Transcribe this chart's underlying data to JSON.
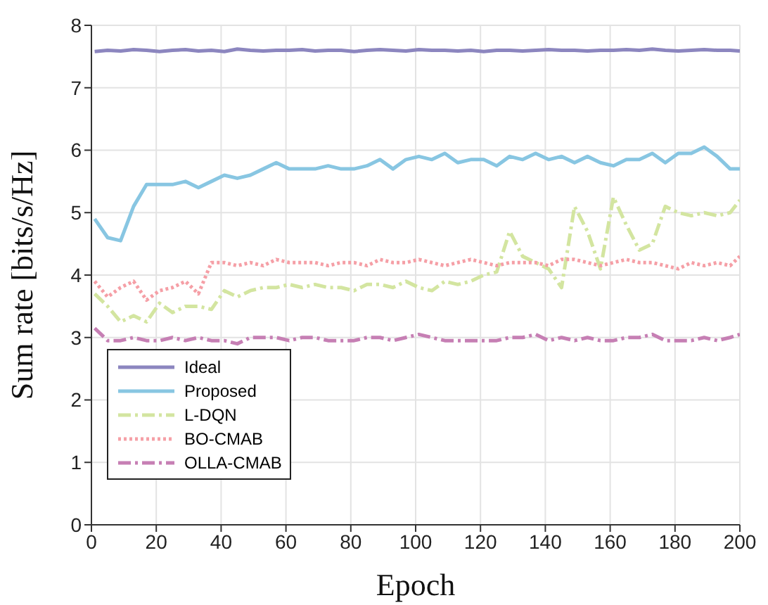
{
  "chart_data": {
    "type": "line",
    "xlabel": "Epoch",
    "ylabel": "Sum rate [bits/s/Hz]",
    "x": [
      1,
      5,
      9,
      13,
      17,
      21,
      25,
      29,
      33,
      37,
      41,
      45,
      49,
      53,
      57,
      61,
      65,
      69,
      73,
      77,
      81,
      85,
      89,
      93,
      97,
      101,
      105,
      109,
      113,
      117,
      121,
      125,
      129,
      133,
      137,
      141,
      145,
      149,
      153,
      157,
      161,
      165,
      169,
      173,
      177,
      181,
      185,
      189,
      193,
      197,
      200
    ],
    "series": [
      {
        "name": "Ideal",
        "color": "#8c86bf",
        "line_style": "solid",
        "values": [
          7.58,
          7.6,
          7.59,
          7.61,
          7.6,
          7.58,
          7.6,
          7.61,
          7.59,
          7.6,
          7.58,
          7.62,
          7.6,
          7.59,
          7.6,
          7.6,
          7.61,
          7.59,
          7.6,
          7.6,
          7.58,
          7.6,
          7.61,
          7.6,
          7.59,
          7.61,
          7.6,
          7.6,
          7.59,
          7.6,
          7.58,
          7.6,
          7.6,
          7.59,
          7.6,
          7.61,
          7.6,
          7.6,
          7.59,
          7.6,
          7.6,
          7.61,
          7.6,
          7.62,
          7.6,
          7.59,
          7.6,
          7.61,
          7.6,
          7.6,
          7.59
        ]
      },
      {
        "name": "Proposed",
        "color": "#88c6e2",
        "line_style": "solid",
        "values": [
          4.9,
          4.6,
          4.55,
          5.1,
          5.45,
          5.45,
          5.45,
          5.5,
          5.4,
          5.5,
          5.6,
          5.55,
          5.6,
          5.7,
          5.8,
          5.7,
          5.7,
          5.7,
          5.75,
          5.7,
          5.7,
          5.75,
          5.85,
          5.7,
          5.85,
          5.9,
          5.85,
          5.95,
          5.8,
          5.85,
          5.85,
          5.75,
          5.9,
          5.85,
          5.95,
          5.85,
          5.9,
          5.8,
          5.9,
          5.8,
          5.75,
          5.85,
          5.85,
          5.95,
          5.8,
          5.95,
          5.95,
          6.05,
          5.9,
          5.7,
          5.7
        ]
      },
      {
        "name": "L-DQN",
        "color": "#d3e5a0",
        "line_style": "dashed",
        "values": [
          3.7,
          3.5,
          3.25,
          3.35,
          3.25,
          3.55,
          3.4,
          3.5,
          3.5,
          3.45,
          3.75,
          3.65,
          3.75,
          3.8,
          3.8,
          3.85,
          3.8,
          3.85,
          3.8,
          3.8,
          3.75,
          3.85,
          3.85,
          3.8,
          3.9,
          3.8,
          3.75,
          3.9,
          3.85,
          3.9,
          4.0,
          4.05,
          4.7,
          4.3,
          4.2,
          4.1,
          3.8,
          5.1,
          4.7,
          4.1,
          5.25,
          4.8,
          4.4,
          4.5,
          5.1,
          5.0,
          4.95,
          5.0,
          4.95,
          5.0,
          5.2
        ]
      },
      {
        "name": "BO-CMAB",
        "color": "#f59fa6",
        "line_style": "dotted",
        "values": [
          3.9,
          3.65,
          3.8,
          3.9,
          3.6,
          3.75,
          3.8,
          3.9,
          3.7,
          4.2,
          4.2,
          4.15,
          4.2,
          4.15,
          4.25,
          4.2,
          4.2,
          4.2,
          4.15,
          4.2,
          4.2,
          4.15,
          4.25,
          4.2,
          4.2,
          4.25,
          4.2,
          4.15,
          4.2,
          4.25,
          4.2,
          4.15,
          4.2,
          4.2,
          4.2,
          4.15,
          4.25,
          4.25,
          4.2,
          4.15,
          4.2,
          4.25,
          4.2,
          4.2,
          4.15,
          4.1,
          4.2,
          4.15,
          4.2,
          4.15,
          4.3
        ]
      },
      {
        "name": "OLLA-CMAB",
        "color": "#c67fb4",
        "line_style": "dashed",
        "values": [
          3.15,
          2.95,
          2.95,
          3.0,
          2.95,
          2.95,
          3.0,
          2.95,
          3.0,
          2.95,
          2.95,
          2.9,
          3.0,
          3.0,
          3.0,
          2.95,
          3.0,
          3.0,
          2.95,
          2.95,
          2.95,
          3.0,
          3.0,
          2.95,
          3.0,
          3.05,
          3.0,
          2.95,
          2.95,
          2.95,
          2.95,
          2.95,
          3.0,
          3.0,
          3.05,
          2.95,
          3.0,
          2.95,
          3.0,
          2.95,
          2.95,
          3.0,
          3.0,
          3.05,
          2.95,
          2.95,
          2.95,
          3.0,
          2.95,
          3.0,
          3.05
        ]
      }
    ],
    "xlim": [
      0,
      200
    ],
    "xticks": [
      0,
      20,
      40,
      60,
      80,
      100,
      120,
      140,
      160,
      180,
      200
    ],
    "ylim": [
      0,
      8
    ],
    "yticks": [
      0,
      1,
      2,
      3,
      4,
      5,
      6,
      7,
      8
    ],
    "grid": true,
    "legend": "bottom left"
  }
}
